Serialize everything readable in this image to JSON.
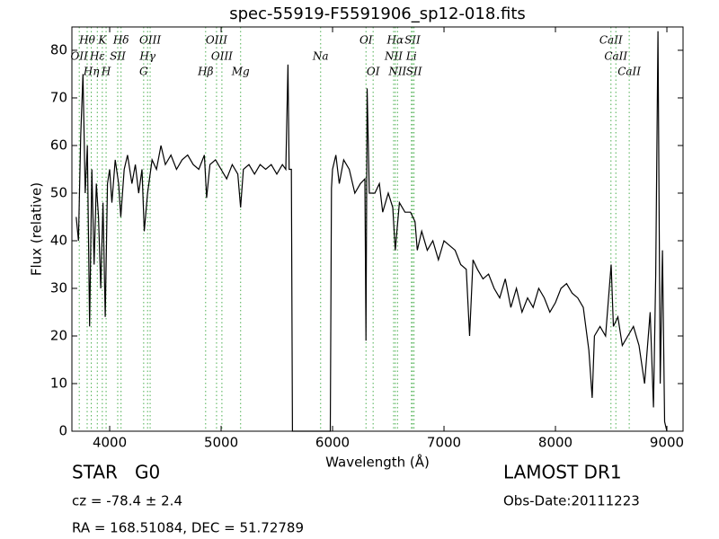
{
  "chart_data": {
    "type": "line",
    "title": "spec-55919-F5591906_sp12-018.fits",
    "xlabel": "Wavelength (Å)",
    "ylabel": "Flux (relative)",
    "xlim": [
      3661,
      9145
    ],
    "ylim": [
      0,
      84.9
    ],
    "xticks": [
      4000,
      5000,
      6000,
      7000,
      8000,
      9000
    ],
    "yticks": [
      0,
      10,
      20,
      30,
      40,
      50,
      60,
      70,
      80
    ],
    "color": "#000000",
    "line_color": "#4caf50",
    "x": [
      3700,
      3720,
      3740,
      3760,
      3780,
      3800,
      3820,
      3840,
      3860,
      3880,
      3900,
      3920,
      3940,
      3960,
      3980,
      4000,
      4020,
      4050,
      4080,
      4100,
      4130,
      4160,
      4200,
      4230,
      4260,
      4290,
      4310,
      4340,
      4380,
      4420,
      4460,
      4500,
      4550,
      4600,
      4650,
      4700,
      4750,
      4800,
      4850,
      4870,
      4900,
      4950,
      5000,
      5050,
      5100,
      5150,
      5175,
      5200,
      5250,
      5300,
      5350,
      5400,
      5450,
      5500,
      5550,
      5580,
      5600,
      5610,
      5630,
      5640,
      5980,
      5990,
      6000,
      6030,
      6060,
      6100,
      6150,
      6200,
      6250,
      6290,
      6300,
      6310,
      6330,
      6380,
      6420,
      6450,
      6500,
      6540,
      6563,
      6600,
      6650,
      6700,
      6740,
      6760,
      6800,
      6850,
      6900,
      6950,
      7000,
      7050,
      7100,
      7150,
      7200,
      7230,
      7260,
      7300,
      7350,
      7400,
      7450,
      7500,
      7550,
      7600,
      7650,
      7700,
      7750,
      7800,
      7850,
      7900,
      7950,
      8000,
      8050,
      8100,
      8150,
      8200,
      8250,
      8300,
      8330,
      8350,
      8400,
      8450,
      8500,
      8520,
      8560,
      8600,
      8650,
      8700,
      8750,
      8800,
      8850,
      8880,
      8900,
      8920,
      8940,
      8960,
      8980,
      9000
    ],
    "values": [
      45,
      40,
      62,
      75,
      50,
      60,
      22,
      55,
      35,
      52,
      45,
      30,
      48,
      24,
      52,
      55,
      48,
      57,
      52,
      45,
      55,
      58,
      52,
      56,
      50,
      55,
      42,
      50,
      57,
      55,
      60,
      56,
      58,
      55,
      57,
      58,
      56,
      55,
      58,
      49,
      56,
      57,
      55,
      53,
      56,
      54,
      47,
      55,
      56,
      54,
      56,
      55,
      56,
      54,
      56,
      55,
      77,
      55,
      55,
      0,
      0,
      51,
      55,
      58,
      52,
      57,
      55,
      50,
      52,
      53,
      19,
      72,
      50,
      50,
      52,
      46,
      50,
      47,
      38,
      48,
      46,
      46,
      44,
      38,
      42,
      38,
      40,
      36,
      40,
      39,
      38,
      35,
      34,
      20,
      36,
      34,
      32,
      33,
      30,
      28,
      32,
      26,
      30,
      25,
      28,
      26,
      30,
      28,
      25,
      27,
      30,
      31,
      29,
      28,
      26,
      17,
      7,
      20,
      22,
      20,
      35,
      22,
      24,
      18,
      20,
      22,
      18,
      10,
      25,
      5,
      33,
      84,
      10,
      38,
      2,
      0
    ],
    "line_label_rows": [
      [
        {
          "label": "Hθ",
          "wavelength": 3798
        },
        {
          "label": "K",
          "wavelength": 3934
        },
        {
          "label": "Hδ",
          "wavelength": 4102
        },
        {
          "label": "OIII",
          "wavelength": 4363
        },
        {
          "label": "OIII",
          "wavelength": 4959
        },
        {
          "label": "OI",
          "wavelength": 6300
        },
        {
          "label": "Hα",
          "wavelength": 6563
        },
        {
          "label": "SII",
          "wavelength": 6717
        },
        {
          "label": "CaII",
          "wavelength": 8498
        }
      ],
      [
        {
          "label": "OII",
          "wavelength": 3727
        },
        {
          "label": "Hε",
          "wavelength": 3889
        },
        {
          "label": "SII",
          "wavelength": 4072
        },
        {
          "label": "Hγ",
          "wavelength": 4340
        },
        {
          "label": "OIII",
          "wavelength": 5007
        },
        {
          "label": "Na",
          "wavelength": 5893
        },
        {
          "label": "NII",
          "wavelength": 6548
        },
        {
          "label": "Li",
          "wavelength": 6708
        },
        {
          "label": "CaII",
          "wavelength": 8542
        }
      ],
      [
        {
          "label": "Hη",
          "wavelength": 3835
        },
        {
          "label": "H",
          "wavelength": 3968
        },
        {
          "label": "G",
          "wavelength": 4305
        },
        {
          "label": "Hβ",
          "wavelength": 4861
        },
        {
          "label": "Mg",
          "wavelength": 5175
        },
        {
          "label": "OI",
          "wavelength": 6364
        },
        {
          "label": "NII",
          "wavelength": 6583
        },
        {
          "label": "SII",
          "wavelength": 6731
        },
        {
          "label": "CaII",
          "wavelength": 8662
        }
      ]
    ],
    "object_class": "STAR   G0",
    "redshift": "cz = -78.4 ± 2.4",
    "survey": "LAMOST DR1",
    "obs_date": "Obs-Date:20111223",
    "coords": "RA = 168.51084, DEC = 51.72789"
  }
}
